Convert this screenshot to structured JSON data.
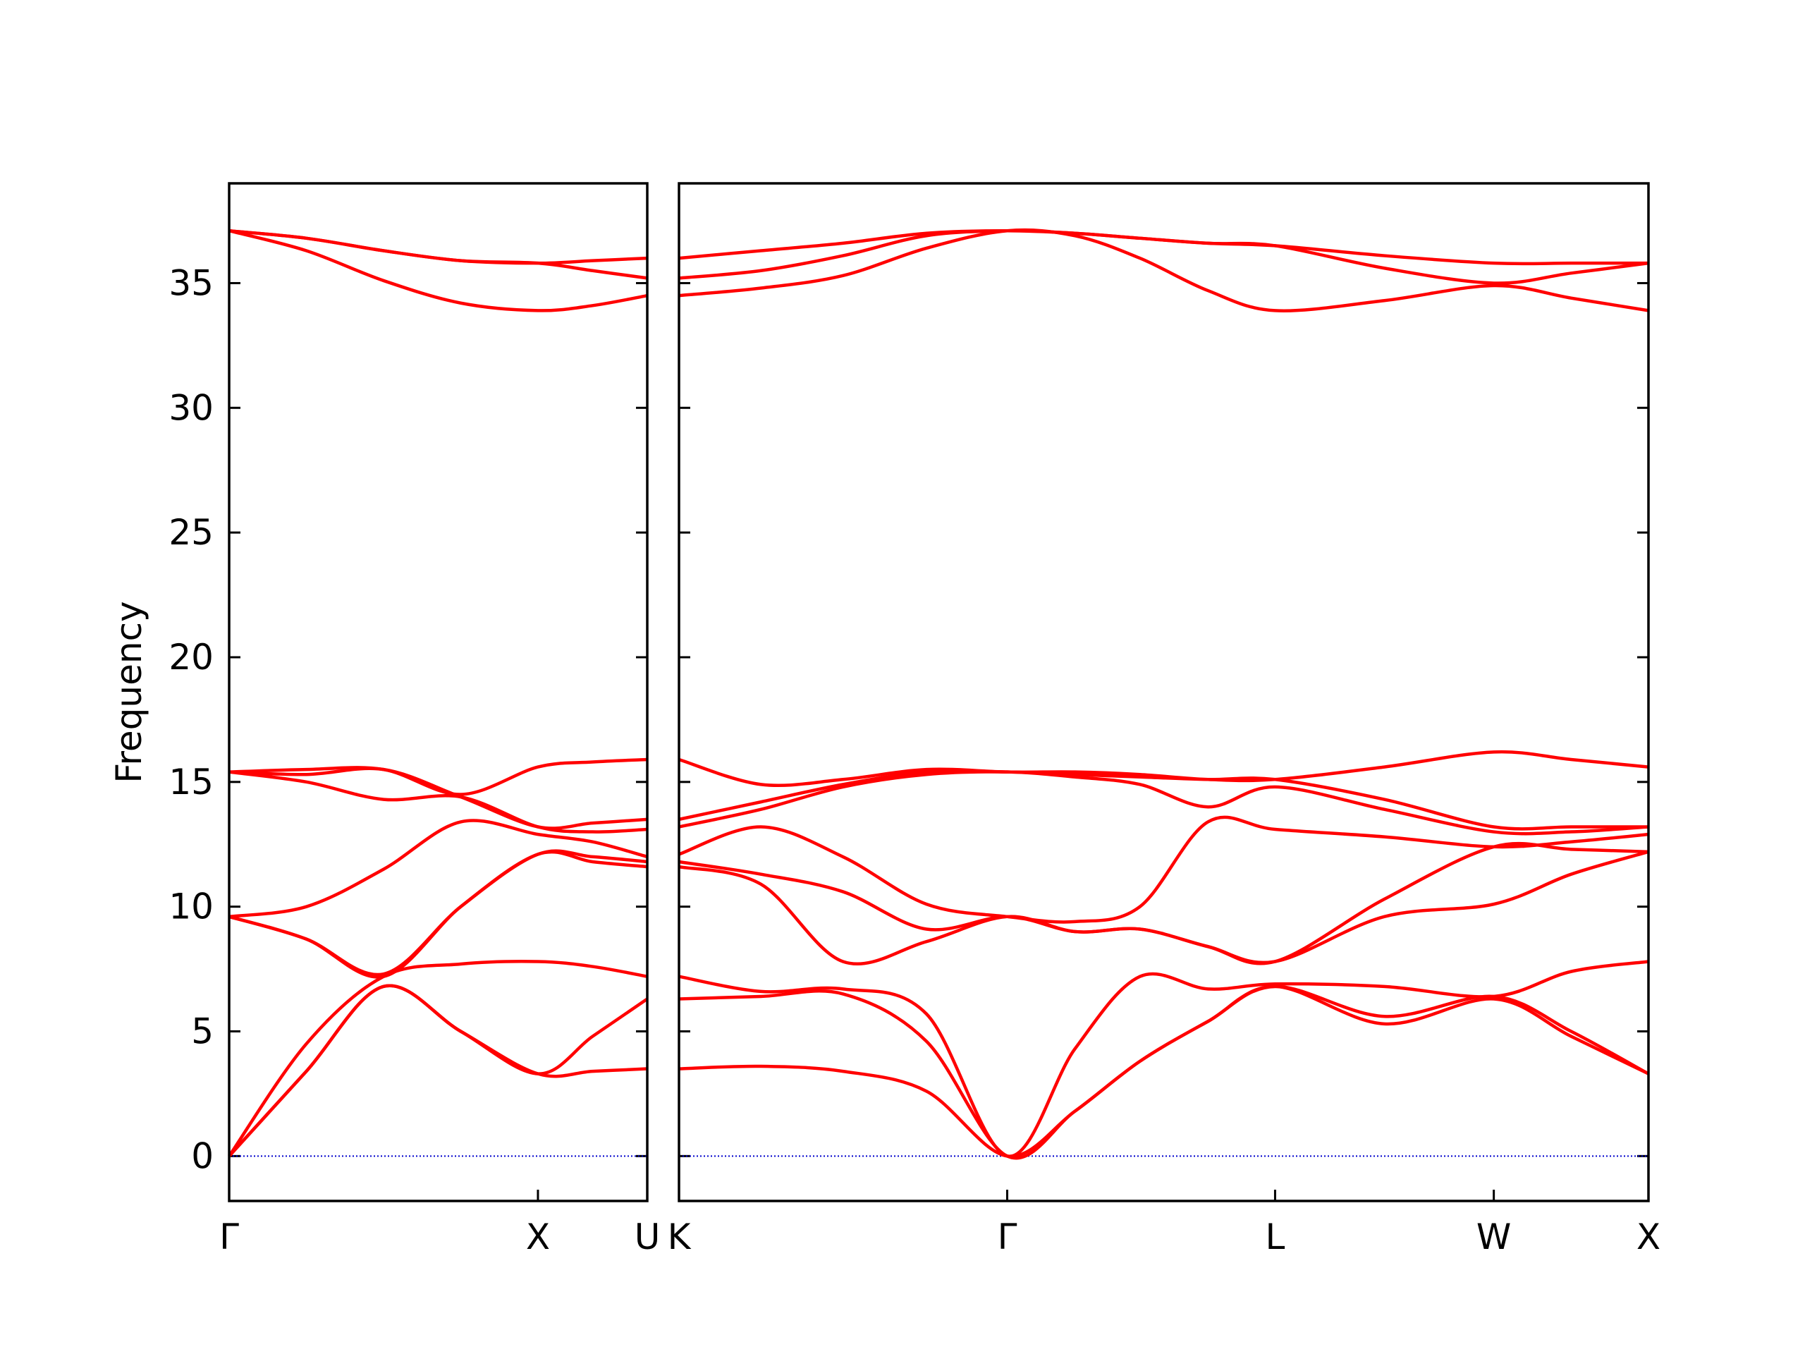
{
  "chart_data": [
    {
      "type": "line",
      "ylabel": "Frequency",
      "color": "#ff0000",
      "hline": 0,
      "hline_color": "#0000cc",
      "ytick_labels": true,
      "xlim": [
        0,
        1.354
      ],
      "xticks": [
        {
          "value": 0,
          "label": "Γ"
        },
        {
          "value": 1,
          "label": "X"
        },
        {
          "value": 1.354,
          "label": "U"
        }
      ],
      "ylim": [
        -1.8,
        39
      ],
      "yticks": [
        0,
        5,
        10,
        15,
        20,
        25,
        30,
        35
      ],
      "x": [
        0,
        0.25,
        0.5,
        0.75,
        1,
        1.177,
        1.354
      ],
      "series": [
        {
          "values": [
            0,
            3.4,
            6.8,
            5.0,
            3.3,
            3.4,
            3.5
          ]
        },
        {
          "values": [
            0,
            3.4,
            6.8,
            5.0,
            3.3,
            4.8,
            6.3
          ]
        },
        {
          "values": [
            0,
            4.5,
            7.2,
            7.7,
            7.8,
            7.6,
            7.2
          ]
        },
        {
          "values": [
            9.6,
            8.7,
            7.2,
            10.0,
            12.1,
            11.8,
            11.6
          ]
        },
        {
          "values": [
            9.6,
            8.7,
            7.3,
            10.0,
            12.1,
            12.0,
            11.8
          ]
        },
        {
          "values": [
            9.6,
            10.0,
            11.5,
            13.4,
            12.9,
            12.6,
            12.0
          ]
        },
        {
          "values": [
            15.4,
            15.0,
            14.3,
            14.4,
            13.2,
            13.0,
            13.1
          ]
        },
        {
          "values": [
            15.4,
            15.3,
            15.5,
            14.4,
            13.2,
            13.35,
            13.5
          ]
        },
        {
          "values": [
            15.4,
            15.5,
            15.5,
            14.5,
            15.6,
            15.8,
            15.9
          ]
        },
        {
          "values": [
            37.1,
            36.3,
            35.1,
            34.2,
            33.9,
            34.1,
            34.5
          ]
        },
        {
          "values": [
            37.1,
            36.8,
            36.3,
            35.9,
            35.8,
            35.5,
            35.2
          ]
        },
        {
          "values": [
            37.1,
            36.8,
            36.3,
            35.9,
            35.8,
            35.9,
            36.0
          ]
        }
      ]
    },
    {
      "type": "line",
      "color": "#ff0000",
      "hline": 0,
      "hline_color": "#0000cc",
      "ytick_labels": false,
      "xlim": [
        0,
        3.134
      ],
      "xticks": [
        {
          "value": 0,
          "label": "K"
        },
        {
          "value": 1.061,
          "label": "Γ"
        },
        {
          "value": 1.927,
          "label": "L"
        },
        {
          "value": 2.634,
          "label": "W"
        },
        {
          "value": 3.134,
          "label": "X"
        }
      ],
      "ylim": [
        -1.8,
        39
      ],
      "yticks": [
        0,
        5,
        10,
        15,
        20,
        25,
        30,
        35
      ],
      "x": [
        0,
        0.265,
        0.53,
        0.8,
        1.061,
        1.28,
        1.49,
        1.71,
        1.927,
        2.28,
        2.634,
        2.884,
        3.134
      ],
      "series": [
        {
          "values": [
            3.5,
            3.6,
            3.4,
            2.6,
            0,
            1.8,
            3.8,
            5.4,
            6.8,
            5.3,
            6.3,
            4.8,
            3.3
          ]
        },
        {
          "values": [
            6.3,
            6.4,
            6.5,
            4.6,
            0,
            1.8,
            3.8,
            5.4,
            6.8,
            5.6,
            6.4,
            5.0,
            3.3
          ]
        },
        {
          "values": [
            7.2,
            6.6,
            6.7,
            5.7,
            0,
            4.3,
            7.2,
            6.7,
            6.9,
            6.8,
            6.4,
            7.4,
            7.8
          ]
        },
        {
          "values": [
            11.6,
            10.9,
            7.8,
            8.6,
            9.6,
            9.0,
            9.1,
            8.4,
            7.8,
            9.6,
            10.1,
            11.3,
            12.2
          ]
        },
        {
          "values": [
            11.8,
            11.3,
            10.6,
            9.1,
            9.6,
            9.0,
            9.1,
            8.4,
            7.8,
            10.3,
            12.4,
            12.3,
            12.2
          ]
        },
        {
          "values": [
            12.1,
            13.2,
            12.0,
            10.1,
            9.6,
            9.4,
            10.0,
            13.4,
            13.1,
            12.8,
            12.4,
            12.6,
            12.9
          ]
        },
        {
          "values": [
            13.2,
            13.9,
            14.8,
            15.3,
            15.4,
            15.2,
            14.9,
            14.0,
            14.8,
            13.9,
            13.0,
            13.0,
            13.2
          ]
        },
        {
          "values": [
            13.5,
            14.2,
            14.9,
            15.4,
            15.4,
            15.3,
            15.2,
            15.1,
            15.1,
            14.3,
            13.2,
            13.2,
            13.2
          ]
        },
        {
          "values": [
            15.9,
            14.9,
            15.1,
            15.5,
            15.4,
            15.4,
            15.3,
            15.1,
            15.1,
            15.6,
            16.2,
            15.9,
            15.6
          ]
        },
        {
          "values": [
            34.5,
            34.8,
            35.3,
            36.4,
            37.1,
            36.9,
            36.0,
            34.7,
            33.9,
            34.3,
            34.9,
            34.4,
            33.9
          ]
        },
        {
          "values": [
            35.2,
            35.5,
            36.1,
            36.9,
            37.1,
            37.0,
            36.8,
            36.6,
            36.5,
            35.6,
            35.0,
            35.4,
            35.8
          ]
        },
        {
          "values": [
            36.0,
            36.3,
            36.6,
            37.0,
            37.1,
            37.0,
            36.8,
            36.6,
            36.5,
            36.1,
            35.8,
            35.8,
            35.8
          ]
        }
      ]
    }
  ]
}
